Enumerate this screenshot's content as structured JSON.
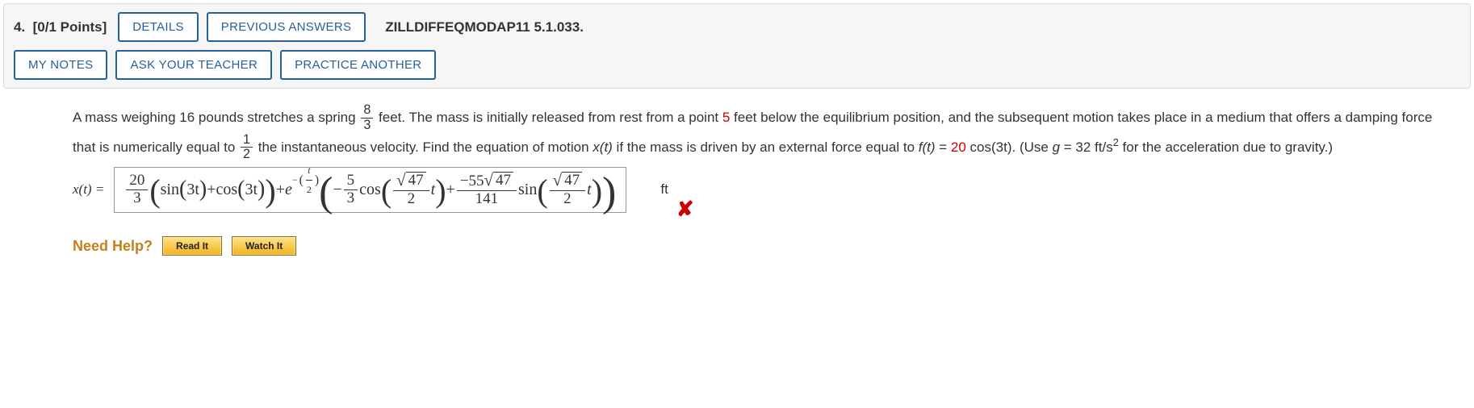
{
  "header": {
    "number_label": "4.",
    "points_label": "[0/1 Points]",
    "details_label": "DETAILS",
    "previous_answers_label": "PREVIOUS ANSWERS",
    "source_ref": "ZILLDIFFEQMODAP11 5.1.033.",
    "my_notes_label": "MY NOTES",
    "ask_teacher_label": "ASK YOUR TEACHER",
    "practice_another_label": "PRACTICE ANOTHER"
  },
  "problem": {
    "pre_frac1": "A mass weighing 16 pounds stretches a spring ",
    "frac1_num": "8",
    "frac1_den": "3",
    "post_frac1_a": " feet. The mass is initially released from rest from a point ",
    "point_val": "5",
    "post_frac1_b": " feet below the equilibrium position, and the subsequent motion takes place in a medium that offers a damping force that is numerically equal to ",
    "frac2_num": "1",
    "frac2_den": "2",
    "post_frac2": " the instantaneous velocity. Find the equation of motion ",
    "xt": "x(t)",
    "post_xt": " if the mass is driven by an external force equal to ",
    "ft_label": "f(t)",
    "ft_eq": " = ",
    "ft_coef": "20",
    "ft_rest": " cos(3t)",
    "use_g_a": ". (Use ",
    "g_label": "g",
    "g_eq": " = 32 ft/s",
    "g_exp": "2",
    "use_g_b": " for the acceleration due to gravity.)"
  },
  "answer": {
    "lhs": "x(t) = ",
    "coef1_num": "20",
    "coef1_den": "3",
    "trig1": "sin",
    "trig1_arg": "3t",
    "plus1": " + ",
    "trig2": "cos",
    "trig2_arg": "3t",
    "plus2": " + ",
    "e_label": "e",
    "exp_minus": "−",
    "exp_num": "t",
    "exp_den": "2",
    "inner_minus": "− ",
    "coef2_num": "5",
    "coef2_den": "3",
    "trig3": "cos",
    "sqrt_a": "47",
    "arg_den_a": "2",
    "arg_t": "t",
    "plus3": " + ",
    "coef3_num_a": "−55",
    "coef3_num_sqrt": "47",
    "coef3_den": "141",
    "trig4": "sin",
    "sqrt_b": "47",
    "arg_den_b": "2",
    "unit": "ft",
    "wrong_icon": "✘"
  },
  "help": {
    "label": "Need Help?",
    "read_label": "Read It",
    "watch_label": "Watch It"
  },
  "colors": {
    "button_border": "#26619c",
    "wrong": "#c00",
    "help_label": "#c77f1a"
  }
}
